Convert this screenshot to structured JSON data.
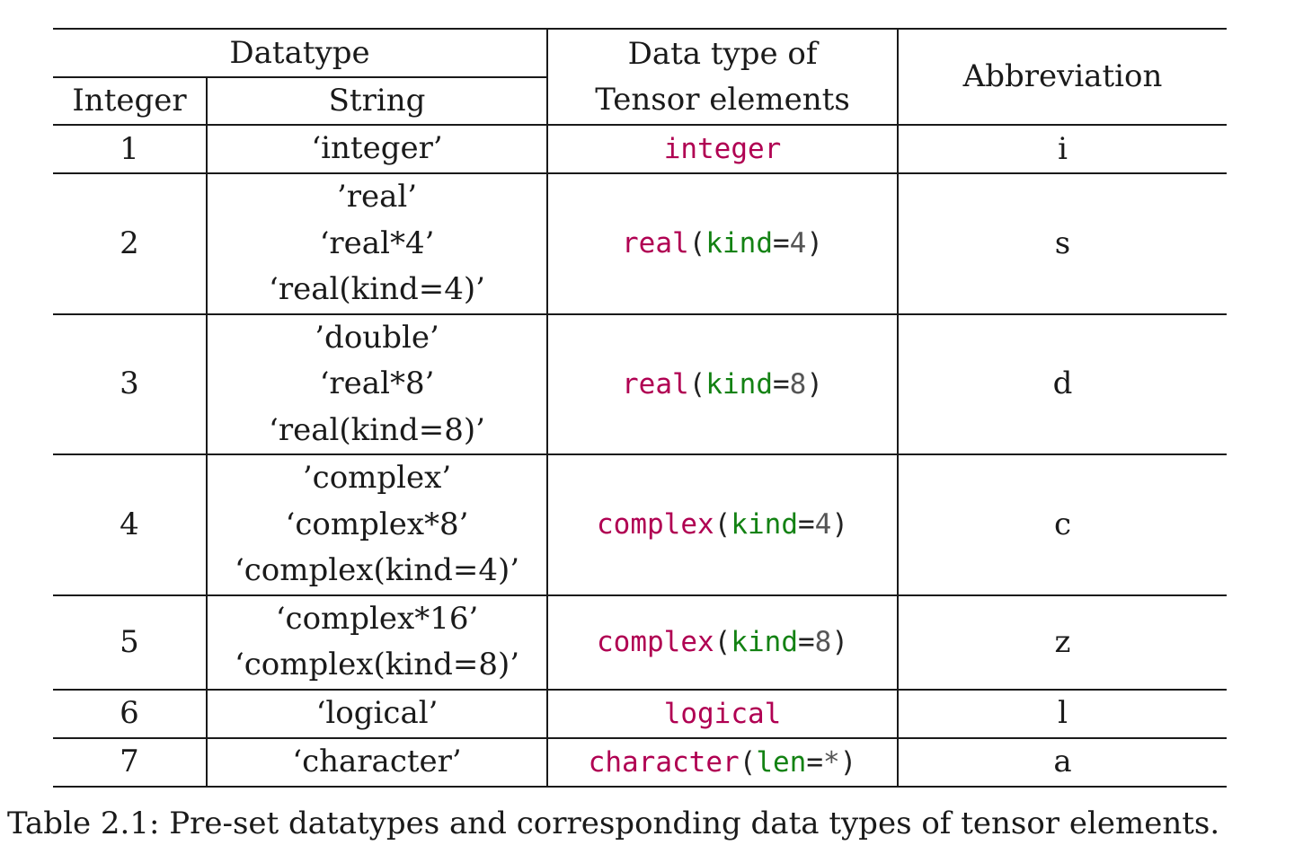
{
  "header": {
    "datatype": "Datatype",
    "integer": "Integer",
    "string": "String",
    "tensor_line1": "Data type of",
    "tensor_line2": "Tensor elements",
    "abbreviation": "Abbreviation"
  },
  "rows": [
    {
      "integer": "1",
      "strings": [
        "‘integer’"
      ],
      "type_name": "integer",
      "type_arg": "",
      "type_val": "",
      "abbr": "i"
    },
    {
      "integer": "2",
      "strings": [
        "’real’",
        "‘real*4’",
        "‘real(kind=4)’"
      ],
      "type_name": "real",
      "type_arg": "kind",
      "type_val": "4",
      "abbr": "s"
    },
    {
      "integer": "3",
      "strings": [
        "’double’",
        "‘real*8’",
        "‘real(kind=8)’"
      ],
      "type_name": "real",
      "type_arg": "kind",
      "type_val": "8",
      "abbr": "d"
    },
    {
      "integer": "4",
      "strings": [
        "’complex’",
        "‘complex*8’",
        "‘complex(kind=4)’"
      ],
      "type_name": "complex",
      "type_arg": "kind",
      "type_val": "4",
      "abbr": "c"
    },
    {
      "integer": "5",
      "strings": [
        "‘complex*16’",
        "‘complex(kind=8)’"
      ],
      "type_name": "complex",
      "type_arg": "kind",
      "type_val": "8",
      "abbr": "z"
    },
    {
      "integer": "6",
      "strings": [
        "‘logical’"
      ],
      "type_name": "logical",
      "type_arg": "",
      "type_val": "",
      "abbr": "l"
    },
    {
      "integer": "7",
      "strings": [
        "‘character’"
      ],
      "type_name": "character",
      "type_arg": "len",
      "type_val": "*",
      "abbr": "a"
    }
  ],
  "caption": "Table 2.1: Pre-set datatypes and corresponding data types of tensor elements.",
  "colors": {
    "keyword": "#b00052",
    "argument": "#138213",
    "value": "#555555"
  }
}
